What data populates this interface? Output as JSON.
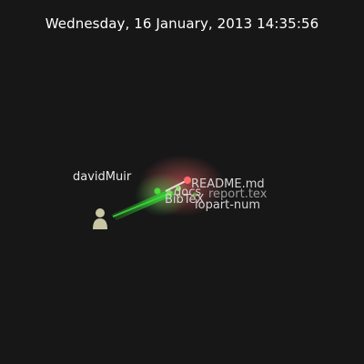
{
  "date_caption": "Wednesday, 16 January, 2013 14:35:56",
  "user": {
    "name": "davidMuir",
    "icon": "person-avatar-icon"
  },
  "files": [
    {
      "name": "README.md",
      "color": "#ff6a6a",
      "dim": false
    },
    {
      "name": "docs",
      "color": "#7ed957",
      "dim": false
    },
    {
      "name": "report.tex",
      "color": "#4cdc3c",
      "dim": true
    },
    {
      "name": "BibTeX",
      "color": "#7ed957",
      "dim": false
    },
    {
      "name": "lopart-num",
      "color": "#4cdc3c",
      "dim": false
    }
  ],
  "colors": {
    "background": "#171717",
    "beam": "#2ecc2e",
    "glow_red": "#ff4d4d",
    "glow_green": "#5be05b",
    "avatar": "#c9c6a4"
  }
}
